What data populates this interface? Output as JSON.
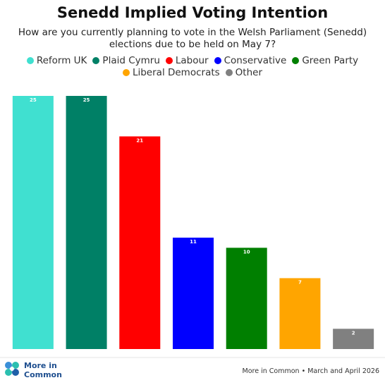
{
  "chart_data": {
    "type": "bar",
    "title": "Senedd Implied Voting Intention",
    "subtitle": "How are you currently planning to vote in the Welsh Parliament (Senedd) elections due to be held on May 7?",
    "categories": [
      "Reform UK",
      "Plaid Cymru",
      "Labour",
      "Conservative",
      "Green Party",
      "Liberal Democrats",
      "Other"
    ],
    "values": [
      25,
      25,
      21,
      11,
      10,
      7,
      2
    ],
    "colors": [
      "#40e0d0",
      "#008066",
      "#ff0000",
      "#0000ff",
      "#007f00",
      "#ffa500",
      "#808080"
    ],
    "ylim": [
      0,
      25
    ],
    "logo": [
      "More in",
      "Common"
    ],
    "source": "More in Common • March and April 2026"
  }
}
